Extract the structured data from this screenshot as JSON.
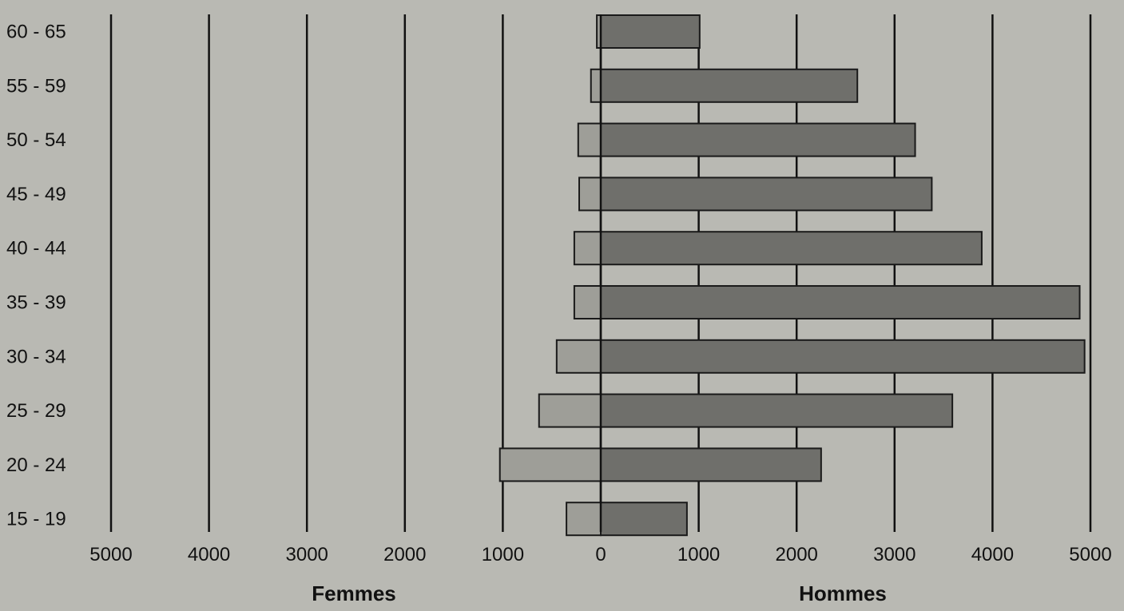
{
  "chart_data": {
    "type": "bar",
    "orientation": "horizontal",
    "layout": "population-pyramid",
    "categories": [
      "60 - 65",
      "55 - 59",
      "50 - 54",
      "45 - 49",
      "40 - 44",
      "35 - 39",
      "30 - 34",
      "25 - 29",
      "20 - 24",
      "15 - 19"
    ],
    "series": [
      {
        "name": "Femmes",
        "values": [
          40,
          100,
          230,
          220,
          270,
          270,
          450,
          630,
          1030,
          350
        ]
      },
      {
        "name": "Hommes",
        "values": [
          1010,
          2620,
          3210,
          3380,
          3890,
          4890,
          4940,
          3590,
          2250,
          880
        ]
      }
    ],
    "xlabel_left": "Femmes",
    "xlabel_right": "Hommes",
    "x_ticks": [
      "5000",
      "4000",
      "3000",
      "2000",
      "1000",
      "0",
      "1000",
      "2000",
      "3000",
      "4000",
      "5000"
    ],
    "xlim": [
      -5000,
      5000
    ],
    "grid": true,
    "colors": {
      "background": "#b9b9b3",
      "femmes": "#9e9e98",
      "hommes": "#6f6f6b",
      "grid": "#111111"
    }
  }
}
